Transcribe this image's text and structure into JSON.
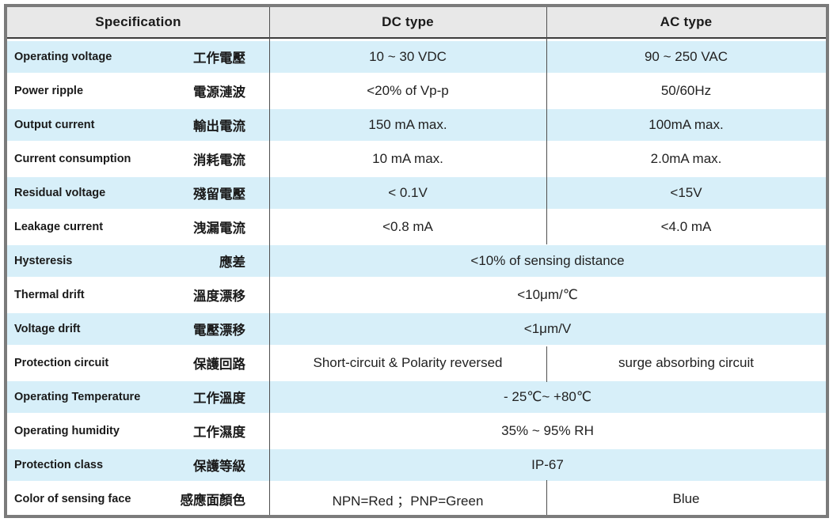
{
  "table": {
    "header": {
      "specification": "Specification",
      "dc": "DC type",
      "ac": "AC type"
    },
    "rows": [
      {
        "name": "operating-voltage",
        "en": "Operating voltage",
        "zh": "工作電壓",
        "dc": "10 ~ 30 VDC",
        "ac": "90 ~ 250 VAC"
      },
      {
        "name": "power-ripple",
        "en": "Power ripple",
        "zh": "電源漣波",
        "dc": "<20% of Vp-p",
        "ac": "50/60Hz"
      },
      {
        "name": "output-current",
        "en": "Output current",
        "zh": "輸出電流",
        "dc": "150 mA max.",
        "ac": "100mA max."
      },
      {
        "name": "current-consumption",
        "en": "Current consumption",
        "zh": "消耗電流",
        "dc": "10 mA max.",
        "ac": "2.0mA max."
      },
      {
        "name": "residual-voltage",
        "en": "Residual voltage",
        "zh": "殘留電壓",
        "dc": "< 0.1V",
        "ac": "<15V"
      },
      {
        "name": "leakage-current",
        "en": "Leakage current",
        "zh": "洩漏電流",
        "dc": "<0.8 mA",
        "ac": "<4.0 mA"
      },
      {
        "name": "hysteresis",
        "en": "Hysteresis",
        "zh": "應差",
        "value": "<10% of sensing distance"
      },
      {
        "name": "thermal-drift",
        "en": "Thermal drift",
        "zh": "溫度漂移",
        "value": "<10μm/℃"
      },
      {
        "name": "voltage-drift",
        "en": "Voltage drift",
        "zh": "電壓漂移",
        "value": "<1μm/V"
      },
      {
        "name": "protection-circuit",
        "en": "Protection circuit",
        "zh": "保護回路",
        "dc": "Short-circuit & Polarity reversed",
        "ac": "surge absorbing circuit"
      },
      {
        "name": "operating-temperature",
        "en": "Operating Temperature",
        "zh": "工作溫度",
        "value": "- 25℃~ +80℃"
      },
      {
        "name": "operating-humidity",
        "en": "Operating humidity",
        "zh": "工作濕度",
        "value": "35% ~ 95% RH"
      },
      {
        "name": "protection-class",
        "en": "Protection class",
        "zh": "保護等級",
        "value": "IP-67"
      },
      {
        "name": "color-of-sensing-face",
        "en": "Color of sensing face",
        "zh": "感應面顏色",
        "dc": "NPN=Red ；PNP=Green",
        "ac": "Blue"
      }
    ],
    "colors": {
      "row_highlight": "#d7eff9",
      "header_bg": "#e8e8e8",
      "frame_border": "#7b7b7b",
      "divider_line": "#4f4f4f",
      "text": "#1a1a1a"
    }
  }
}
